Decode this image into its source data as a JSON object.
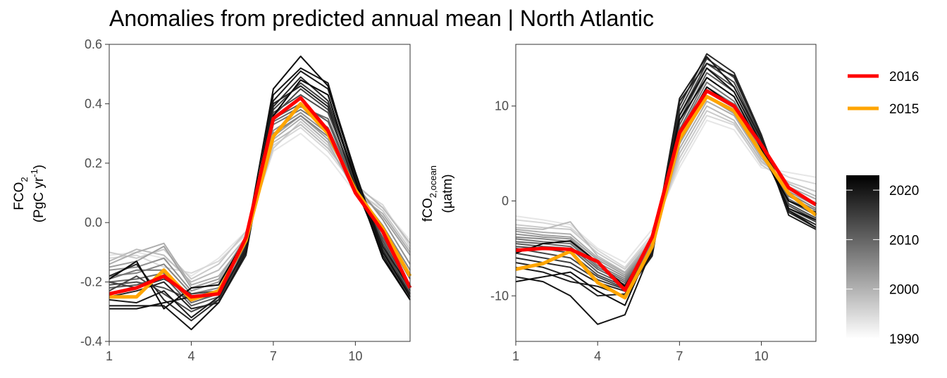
{
  "title": "Anomalies from predicted annual mean | North Atlantic",
  "legend": {
    "highlight": [
      {
        "name": "2016",
        "color": "#ff0000"
      },
      {
        "name": "2015",
        "color": "#ffa500"
      }
    ],
    "colorbar": {
      "labels": [
        "2020",
        "2010",
        "2000",
        "1990"
      ],
      "range": [
        1990,
        2023
      ],
      "from_color": "#ffffff",
      "to_color": "#000000"
    }
  },
  "chart_data": [
    {
      "type": "line",
      "title": "",
      "xlabel": "",
      "ylabel_main": "FCO",
      "ylabel_sub": "2",
      "ylabel_unit_pre": "(PgC yr",
      "ylabel_unit_sup": "-1",
      "ylabel_unit_post": ")",
      "xlim": [
        1,
        12
      ],
      "ylim": [
        -0.4,
        0.6
      ],
      "xticks": [
        "1",
        "4",
        "7",
        "10"
      ],
      "xtick_values": [
        1,
        4,
        7,
        10
      ],
      "yticks": [
        "0.6",
        "0.4",
        "0.2",
        "0.0",
        "-0.2",
        "-0.4"
      ],
      "ytick_values": [
        0.6,
        0.4,
        0.2,
        0.0,
        -0.2,
        -0.4
      ],
      "x": [
        1,
        2,
        3,
        4,
        5,
        6,
        7,
        8,
        9,
        10,
        11,
        12
      ],
      "background_series": [
        {
          "year": 1990,
          "values": [
            -0.11,
            -0.1,
            -0.12,
            -0.18,
            -0.12,
            -0.03,
            0.24,
            0.3,
            0.22,
            0.1,
            0.05,
            -0.06
          ]
        },
        {
          "year": 1992,
          "values": [
            -0.12,
            -0.11,
            -0.15,
            -0.17,
            -0.13,
            -0.04,
            0.26,
            0.32,
            0.24,
            0.12,
            0.06,
            -0.08
          ]
        },
        {
          "year": 1994,
          "values": [
            -0.1,
            -0.12,
            -0.09,
            -0.19,
            -0.14,
            -0.03,
            0.25,
            0.34,
            0.26,
            0.11,
            0.04,
            -0.09
          ]
        },
        {
          "year": 1996,
          "values": [
            -0.13,
            -0.09,
            -0.11,
            -0.2,
            -0.16,
            -0.05,
            0.27,
            0.33,
            0.25,
            0.13,
            0.05,
            -0.07
          ]
        },
        {
          "year": 1998,
          "values": [
            -0.14,
            -0.1,
            -0.07,
            -0.21,
            -0.18,
            -0.06,
            0.28,
            0.35,
            0.27,
            0.1,
            0.03,
            -0.1
          ]
        },
        {
          "year": 2000,
          "values": [
            -0.15,
            -0.13,
            -0.08,
            -0.22,
            -0.19,
            -0.05,
            0.29,
            0.36,
            0.28,
            0.12,
            0.02,
            -0.11
          ]
        },
        {
          "year": 2002,
          "values": [
            -0.16,
            -0.15,
            -0.12,
            -0.23,
            -0.2,
            -0.06,
            0.31,
            0.37,
            0.3,
            0.13,
            0.01,
            -0.14
          ]
        },
        {
          "year": 2004,
          "values": [
            -0.18,
            -0.17,
            -0.14,
            -0.24,
            -0.22,
            -0.08,
            0.3,
            0.36,
            0.29,
            0.11,
            -0.01,
            -0.16
          ]
        },
        {
          "year": 2006,
          "values": [
            -0.19,
            -0.16,
            -0.16,
            -0.25,
            -0.23,
            -0.07,
            0.33,
            0.38,
            0.32,
            0.12,
            -0.02,
            -0.18
          ]
        },
        {
          "year": 2008,
          "values": [
            -0.2,
            -0.19,
            -0.17,
            -0.27,
            -0.24,
            -0.09,
            0.34,
            0.39,
            0.35,
            0.13,
            -0.03,
            -0.19
          ]
        },
        {
          "year": 2010,
          "values": [
            -0.22,
            -0.21,
            -0.18,
            -0.28,
            -0.25,
            -0.08,
            0.35,
            0.4,
            0.34,
            0.12,
            -0.05,
            -0.21
          ]
        },
        {
          "year": 2012,
          "values": [
            -0.21,
            -0.2,
            -0.22,
            -0.26,
            -0.24,
            -0.1,
            0.37,
            0.43,
            0.37,
            0.14,
            -0.06,
            -0.22
          ]
        },
        {
          "year": 2013,
          "values": [
            -0.23,
            -0.18,
            -0.24,
            -0.3,
            -0.26,
            -0.09,
            0.36,
            0.45,
            0.38,
            0.13,
            -0.07,
            -0.23
          ]
        },
        {
          "year": 2014,
          "values": [
            -0.2,
            -0.22,
            -0.19,
            -0.24,
            -0.23,
            -0.07,
            0.38,
            0.47,
            0.4,
            0.15,
            -0.08,
            -0.24
          ]
        },
        {
          "year": 2017,
          "values": [
            -0.18,
            -0.14,
            -0.26,
            -0.33,
            -0.26,
            -0.08,
            0.39,
            0.49,
            0.41,
            0.14,
            -0.09,
            -0.25
          ]
        },
        {
          "year": 2018,
          "values": [
            -0.25,
            -0.23,
            -0.2,
            -0.29,
            -0.27,
            -0.11,
            0.4,
            0.46,
            0.39,
            0.12,
            -0.1,
            -0.24
          ]
        },
        {
          "year": 2019,
          "values": [
            -0.26,
            -0.27,
            -0.23,
            -0.32,
            -0.25,
            -0.09,
            0.41,
            0.51,
            0.45,
            0.16,
            -0.08,
            -0.22
          ]
        },
        {
          "year": 2020,
          "values": [
            -0.28,
            -0.28,
            -0.28,
            -0.36,
            -0.27,
            -0.1,
            0.43,
            0.52,
            0.47,
            0.15,
            -0.11,
            -0.26
          ]
        },
        {
          "year": 2021,
          "values": [
            -0.29,
            -0.29,
            -0.27,
            -0.25,
            -0.24,
            -0.06,
            0.45,
            0.56,
            0.46,
            0.17,
            -0.1,
            -0.25
          ]
        },
        {
          "year": 2022,
          "values": [
            -0.19,
            -0.13,
            -0.29,
            -0.22,
            -0.21,
            -0.05,
            0.36,
            0.48,
            0.43,
            0.14,
            -0.12,
            -0.26
          ]
        }
      ],
      "series": [
        {
          "name": "2016",
          "color": "#ff0000",
          "values": [
            -0.24,
            -0.22,
            -0.18,
            -0.25,
            -0.24,
            -0.05,
            0.35,
            0.42,
            0.31,
            0.1,
            -0.03,
            -0.22
          ]
        },
        {
          "name": "2015",
          "color": "#ffa500",
          "values": [
            -0.25,
            -0.25,
            -0.16,
            -0.26,
            -0.23,
            -0.06,
            0.29,
            0.4,
            0.3,
            0.11,
            -0.02,
            -0.18
          ]
        }
      ]
    },
    {
      "type": "line",
      "title": "",
      "xlabel": "",
      "ylabel_main": "fCO",
      "ylabel_sub": "2,ocean",
      "ylabel_unit": "(µatm)",
      "xlim": [
        1,
        12
      ],
      "ylim": [
        -14.8,
        16.5
      ],
      "xticks": [
        "1",
        "4",
        "7",
        "10"
      ],
      "xtick_values": [
        1,
        4,
        7,
        10
      ],
      "yticks": [
        "10",
        "0",
        "-10"
      ],
      "ytick_values": [
        10,
        0,
        -10
      ],
      "x": [
        1,
        2,
        3,
        4,
        5,
        6,
        7,
        8,
        9,
        10,
        11,
        12
      ],
      "background_series": [
        {
          "year": 1990,
          "values": [
            -1.6,
            -2.0,
            -2.5,
            -5.0,
            -6.5,
            -3.0,
            3.5,
            8.5,
            7.5,
            3.5,
            3.0,
            2.5
          ]
        },
        {
          "year": 1992,
          "values": [
            -2.0,
            -2.3,
            -2.8,
            -5.2,
            -7.0,
            -3.5,
            4.0,
            9.0,
            8.0,
            4.0,
            2.5,
            1.8
          ]
        },
        {
          "year": 1994,
          "values": [
            -2.5,
            -2.8,
            -3.0,
            -5.5,
            -7.2,
            -3.8,
            4.5,
            9.5,
            8.2,
            3.8,
            2.0,
            1.0
          ]
        },
        {
          "year": 1996,
          "values": [
            -2.8,
            -3.0,
            -2.2,
            -5.8,
            -7.5,
            -4.0,
            5.0,
            10.0,
            8.5,
            4.2,
            1.8,
            0.5
          ]
        },
        {
          "year": 1998,
          "values": [
            -3.0,
            -3.3,
            -3.5,
            -6.0,
            -7.6,
            -4.2,
            5.5,
            10.5,
            9.0,
            4.5,
            1.5,
            0.2
          ]
        },
        {
          "year": 2000,
          "values": [
            -3.2,
            -3.6,
            -3.8,
            -6.2,
            -7.8,
            -4.3,
            6.0,
            11.0,
            9.2,
            4.8,
            1.2,
            -0.2
          ]
        },
        {
          "year": 2002,
          "values": [
            -3.5,
            -3.8,
            -4.0,
            -6.5,
            -8.0,
            -4.5,
            6.5,
            11.5,
            9.8,
            5.0,
            1.0,
            -0.5
          ]
        },
        {
          "year": 2004,
          "values": [
            -3.8,
            -4.0,
            -4.3,
            -6.8,
            -8.2,
            -4.6,
            6.8,
            12.0,
            10.2,
            5.2,
            0.8,
            -0.8
          ]
        },
        {
          "year": 2006,
          "values": [
            -4.0,
            -4.3,
            -4.5,
            -7.0,
            -8.4,
            -4.8,
            7.2,
            12.5,
            10.5,
            5.5,
            0.5,
            -1.0
          ]
        },
        {
          "year": 2008,
          "values": [
            -4.3,
            -4.5,
            -4.8,
            -7.2,
            -8.6,
            -5.0,
            7.5,
            13.0,
            11.0,
            5.8,
            0.2,
            -1.3
          ]
        },
        {
          "year": 2010,
          "values": [
            -4.5,
            -4.8,
            -5.0,
            -7.5,
            -8.8,
            -5.2,
            8.0,
            13.5,
            11.5,
            6.0,
            0.0,
            -1.5
          ]
        },
        {
          "year": 2012,
          "values": [
            -4.8,
            -5.0,
            -5.5,
            -7.8,
            -9.0,
            -5.4,
            8.5,
            14.0,
            12.0,
            6.2,
            -0.3,
            -1.8
          ]
        },
        {
          "year": 2013,
          "values": [
            -5.0,
            -5.5,
            -6.0,
            -8.0,
            -9.2,
            -5.5,
            9.0,
            14.5,
            12.5,
            6.5,
            -0.5,
            -2.0
          ]
        },
        {
          "year": 2014,
          "values": [
            -5.5,
            -6.0,
            -6.5,
            -8.3,
            -9.3,
            -5.6,
            9.5,
            15.0,
            13.0,
            6.8,
            -0.8,
            -2.2
          ]
        },
        {
          "year": 2017,
          "values": [
            -6.0,
            -6.5,
            -7.0,
            -8.6,
            -9.5,
            -5.7,
            10.0,
            15.5,
            13.5,
            7.0,
            -1.0,
            -2.5
          ]
        },
        {
          "year": 2018,
          "values": [
            -6.5,
            -7.0,
            -8.0,
            -10.0,
            -9.8,
            -5.8,
            10.5,
            14.5,
            13.2,
            6.8,
            -1.2,
            -2.8
          ]
        },
        {
          "year": 2019,
          "values": [
            -7.0,
            -7.5,
            -8.5,
            -9.0,
            -10.0,
            -5.5,
            10.8,
            15.2,
            12.0,
            6.5,
            -1.5,
            -3.0
          ]
        },
        {
          "year": 2020,
          "values": [
            -8.0,
            -8.5,
            -10.0,
            -13.0,
            -12.0,
            -5.0,
            9.0,
            14.0,
            11.5,
            6.0,
            -1.0,
            -2.8
          ]
        },
        {
          "year": 2021,
          "values": [
            -8.5,
            -8.0,
            -7.5,
            -9.5,
            -11.0,
            -4.5,
            8.5,
            13.0,
            11.0,
            5.5,
            -0.8,
            -2.0
          ]
        },
        {
          "year": 2022,
          "values": [
            -5.5,
            -4.5,
            -4.2,
            -6.5,
            -9.0,
            -4.0,
            7.0,
            12.0,
            10.0,
            5.0,
            0.0,
            -1.2
          ]
        }
      ],
      "series": [
        {
          "name": "2016",
          "color": "#ff0000",
          "values": [
            -5.2,
            -5.0,
            -5.1,
            -6.4,
            -9.4,
            -3.8,
            7.2,
            11.6,
            10.0,
            5.9,
            1.4,
            -0.4
          ]
        },
        {
          "name": "2015",
          "color": "#ffa500",
          "values": [
            -7.2,
            -6.6,
            -5.3,
            -8.6,
            -10.2,
            -4.8,
            6.5,
            11.0,
            9.5,
            5.0,
            0.8,
            -1.5
          ]
        }
      ]
    }
  ]
}
